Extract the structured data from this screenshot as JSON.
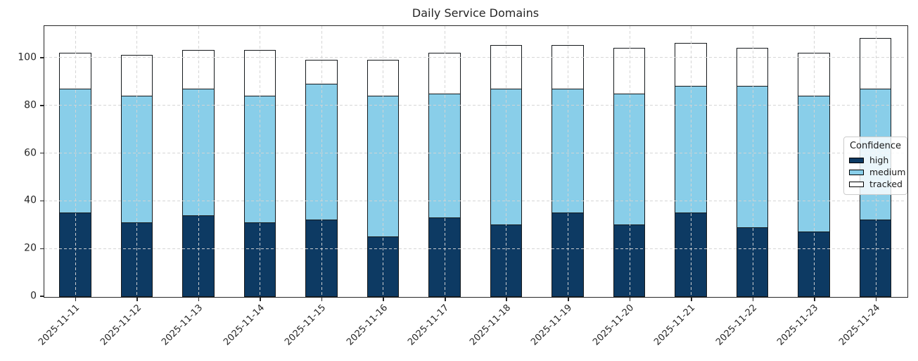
{
  "figure": {
    "title": "Daily Service Domains"
  },
  "chart_data": {
    "type": "bar",
    "stacked": true,
    "title": "Daily Service Domains",
    "categories": [
      "2025-11-11",
      "2025-11-12",
      "2025-11-13",
      "2025-11-14",
      "2025-11-15",
      "2025-11-16",
      "2025-11-17",
      "2025-11-18",
      "2025-11-19",
      "2025-11-20",
      "2025-11-21",
      "2025-11-22",
      "2025-11-23",
      "2025-11-24"
    ],
    "series": [
      {
        "name": "high",
        "color": "#0d3a63",
        "values": [
          35,
          31,
          34,
          31,
          32,
          25,
          33,
          30,
          35,
          30,
          35,
          29,
          27,
          32
        ]
      },
      {
        "name": "medium",
        "color": "#89cee9",
        "values": [
          52,
          53,
          53,
          53,
          57,
          59,
          52,
          57,
          52,
          55,
          53,
          59,
          57,
          55
        ]
      },
      {
        "name": "tracked",
        "color": "#ffffff",
        "values": [
          15,
          17,
          16,
          19,
          10,
          15,
          17,
          18,
          18,
          19,
          18,
          16,
          18,
          21
        ]
      }
    ],
    "stack_totals": [
      102,
      101,
      103,
      103,
      99,
      99,
      102,
      105,
      105,
      104,
      106,
      104,
      102,
      108
    ],
    "xlabel": "",
    "ylabel": "",
    "yticks": [
      0,
      20,
      40,
      60,
      80,
      100
    ],
    "ylim": [
      0,
      113
    ],
    "x_tick_rotation": 45,
    "grid": true,
    "grid_style": "dashed",
    "grid_color": "#d4d4d4",
    "background": "#ffffff",
    "bar_edge_color": "#15191c",
    "text_color": "#262626",
    "legend": {
      "title": "Confidence",
      "entries": [
        "high",
        "medium",
        "tracked"
      ],
      "position": "center-right"
    }
  }
}
